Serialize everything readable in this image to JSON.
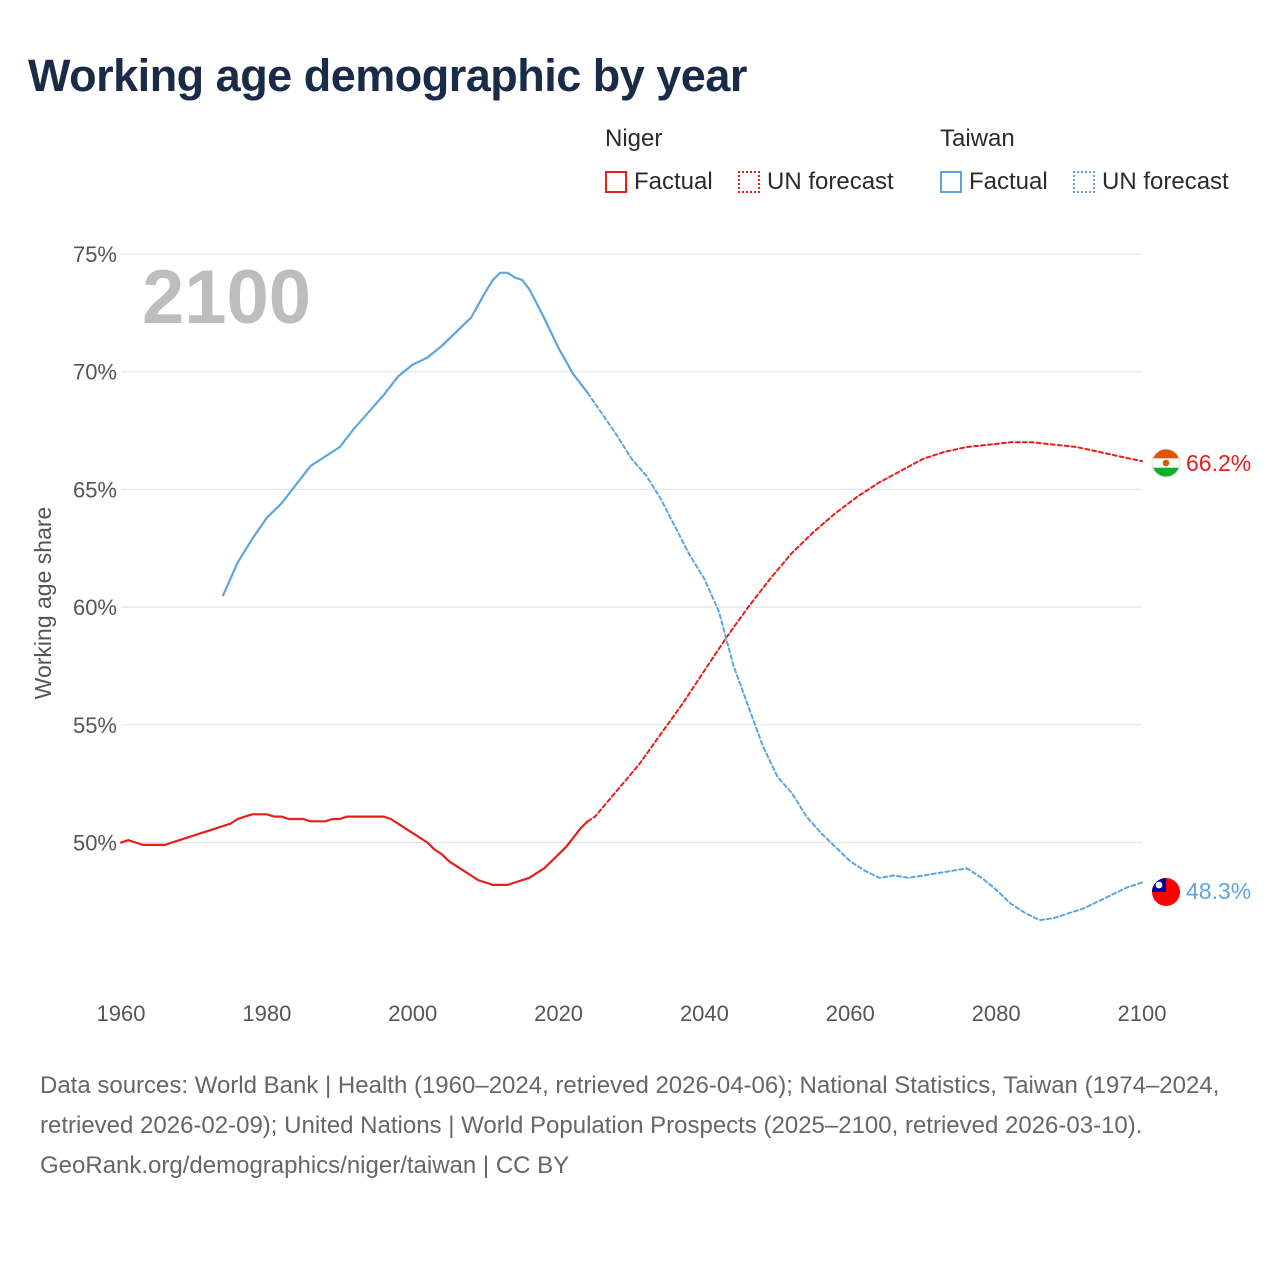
{
  "title": "Working age demographic by year",
  "legend": {
    "groups": [
      {
        "name": "Niger",
        "color": "#e3201b",
        "factual_label": "Factual",
        "forecast_label": "UN forecast"
      },
      {
        "name": "Taiwan",
        "color": "#5ea5e0",
        "factual_label": "Factual",
        "forecast_label": "UN forecast"
      }
    ]
  },
  "footer": {
    "sources": "Data sources: World Bank | Health (1960–2024, retrieved 2026-04-06); National Statistics, Taiwan (1974–2024, retrieved 2026-02-09); United Nations | World Population Prospects (2025–2100, retrieved 2026-03-10).",
    "credit": "GeoRank.org/demographics/niger/taiwan | CC BY"
  },
  "chart_data": {
    "type": "line",
    "title": "Working age demographic by year",
    "xlabel": "",
    "ylabel": "Working age share",
    "year_label": "2100",
    "xlim": [
      1960,
      2100
    ],
    "ylim": [
      44.5,
      75
    ],
    "x_ticks": [
      1960,
      1980,
      2000,
      2020,
      2040,
      2060,
      2080,
      2100
    ],
    "x_tick_labels": [
      "1960",
      "1980",
      "2000",
      "2020",
      "2040",
      "2060",
      "2080",
      "2100"
    ],
    "y_ticks": [
      50,
      55,
      60,
      65,
      70,
      75
    ],
    "y_tick_labels": [
      "50%",
      "55%",
      "60%",
      "65%",
      "70%",
      "75%"
    ],
    "grid": true,
    "series": [
      {
        "name": "Niger",
        "color": "#e3201b",
        "end_label": "66.2%",
        "end_value": 66.2,
        "factual": {
          "x": [
            1960,
            1961,
            1962,
            1963,
            1964,
            1965,
            1966,
            1967,
            1968,
            1969,
            1970,
            1971,
            1972,
            1973,
            1974,
            1975,
            1976,
            1977,
            1978,
            1979,
            1980,
            1981,
            1982,
            1983,
            1984,
            1985,
            1986,
            1987,
            1988,
            1989,
            1990,
            1991,
            1992,
            1993,
            1994,
            1995,
            1996,
            1997,
            1998,
            1999,
            2000,
            2001,
            2002,
            2003,
            2004,
            2005,
            2006,
            2007,
            2008,
            2009,
            2010,
            2011,
            2012,
            2013,
            2014,
            2015,
            2016,
            2017,
            2018,
            2019,
            2020,
            2021,
            2022,
            2023,
            2024
          ],
          "y": [
            50.0,
            50.1,
            50.0,
            49.9,
            49.9,
            49.9,
            49.9,
            50.0,
            50.1,
            50.2,
            50.3,
            50.4,
            50.5,
            50.6,
            50.7,
            50.8,
            51.0,
            51.1,
            51.2,
            51.2,
            51.2,
            51.1,
            51.1,
            51.0,
            51.0,
            51.0,
            50.9,
            50.9,
            50.9,
            51.0,
            51.0,
            51.1,
            51.1,
            51.1,
            51.1,
            51.1,
            51.1,
            51.0,
            50.8,
            50.6,
            50.4,
            50.2,
            50.0,
            49.7,
            49.5,
            49.2,
            49.0,
            48.8,
            48.6,
            48.4,
            48.3,
            48.2,
            48.2,
            48.2,
            48.3,
            48.4,
            48.5,
            48.7,
            48.9,
            49.2,
            49.5,
            49.8,
            50.2,
            50.6,
            50.9
          ],
          "dashed": false
        },
        "forecast": {
          "x": [
            2024,
            2025,
            2028,
            2031,
            2034,
            2037,
            2040,
            2043,
            2046,
            2049,
            2052,
            2055,
            2058,
            2061,
            2064,
            2067,
            2070,
            2073,
            2076,
            2079,
            2082,
            2085,
            2088,
            2091,
            2094,
            2097,
            2100
          ],
          "y": [
            50.9,
            51.1,
            52.2,
            53.3,
            54.6,
            55.9,
            57.3,
            58.7,
            60.0,
            61.2,
            62.3,
            63.2,
            64.0,
            64.7,
            65.3,
            65.8,
            66.3,
            66.6,
            66.8,
            66.9,
            67.0,
            67.0,
            66.9,
            66.8,
            66.6,
            66.4,
            66.2
          ],
          "dashed": true
        }
      },
      {
        "name": "Taiwan",
        "color": "#5ea5e0",
        "end_label": "48.3%",
        "end_value": 48.3,
        "factual": {
          "x": [
            1974,
            1976,
            1978,
            1980,
            1982,
            1984,
            1986,
            1988,
            1990,
            1992,
            1994,
            1996,
            1998,
            2000,
            2002,
            2004,
            2006,
            2008,
            2010,
            2011,
            2012,
            2013,
            2014,
            2015,
            2016,
            2018,
            2020,
            2022,
            2024
          ],
          "y": [
            60.5,
            61.9,
            62.9,
            63.8,
            64.4,
            65.2,
            66.0,
            66.4,
            66.8,
            67.6,
            68.3,
            69.0,
            69.8,
            70.3,
            70.6,
            71.1,
            71.7,
            72.3,
            73.4,
            73.9,
            74.2,
            74.2,
            74.0,
            73.9,
            73.5,
            72.3,
            71.0,
            69.9,
            69.1
          ],
          "dashed": false
        },
        "forecast": {
          "x": [
            2024,
            2026,
            2028,
            2030,
            2032,
            2034,
            2036,
            2038,
            2040,
            2042,
            2044,
            2046,
            2048,
            2050,
            2052,
            2054,
            2056,
            2058,
            2060,
            2062,
            2064,
            2066,
            2068,
            2070,
            2072,
            2074,
            2076,
            2078,
            2080,
            2082,
            2084,
            2086,
            2088,
            2090,
            2092,
            2094,
            2096,
            2098,
            2100
          ],
          "y": [
            69.1,
            68.2,
            67.3,
            66.3,
            65.6,
            64.6,
            63.4,
            62.2,
            61.2,
            59.8,
            57.5,
            55.8,
            54.1,
            52.8,
            52.1,
            51.1,
            50.4,
            49.8,
            49.2,
            48.8,
            48.5,
            48.6,
            48.5,
            48.6,
            48.7,
            48.8,
            48.9,
            48.5,
            48.0,
            47.4,
            47.0,
            46.7,
            46.8,
            47.0,
            47.2,
            47.5,
            47.8,
            48.1,
            48.3
          ],
          "dashed": true
        }
      }
    ]
  }
}
